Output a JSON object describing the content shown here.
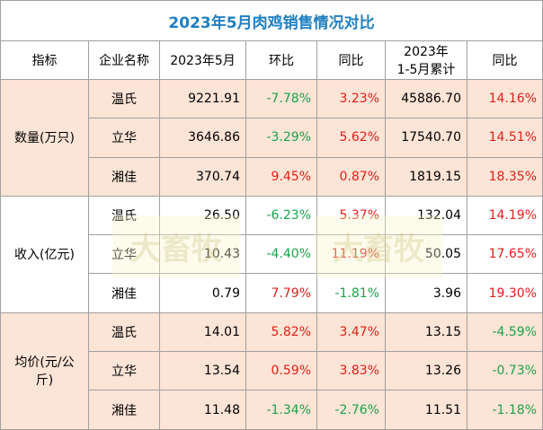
{
  "title": "2023年5月肉鸡销售情况对比",
  "header": [
    "指标",
    "企业名称",
    "2023年5月",
    "环比",
    "同比",
    [
      "2023年",
      "1-5月累计"
    ],
    "同比"
  ],
  "groups": [
    {
      "label": "数量(万只)",
      "rows": [
        [
          "温氏",
          "9221.91",
          "-7.78%",
          "3.23%",
          "45886.70",
          "14.16%"
        ],
        [
          "立华",
          "3646.86",
          "-3.29%",
          "5.62%",
          "17540.70",
          "14.51%"
        ],
        [
          "湘佳",
          "370.74",
          "9.45%",
          "0.87%",
          "1819.15",
          "18.35%"
        ]
      ]
    },
    {
      "label": "收入(亿元)",
      "rows": [
        [
          "温氏",
          "26.50",
          "-6.23%",
          "5.37%",
          "132.04",
          "14.19%"
        ],
        [
          "立华",
          "10.43",
          "-4.40%",
          "11.19%",
          "50.05",
          "17.65%"
        ],
        [
          "湘佳",
          "0.79",
          "7.79%",
          "-1.81%",
          "3.96",
          "19.30%"
        ]
      ]
    },
    {
      "label": "均价(元/公斤)",
      "rows": [
        [
          "温氏",
          "14.01",
          "5.82%",
          "3.47%",
          "13.15",
          "-4.59%"
        ],
        [
          "立华",
          "13.54",
          "0.59%",
          "3.83%",
          "13.26",
          "-0.73%"
        ],
        [
          "湘佳",
          "11.48",
          "-1.34%",
          "-2.76%",
          "11.51",
          "-1.18%"
        ]
      ]
    }
  ],
  "watermark": "大畜牧"
}
